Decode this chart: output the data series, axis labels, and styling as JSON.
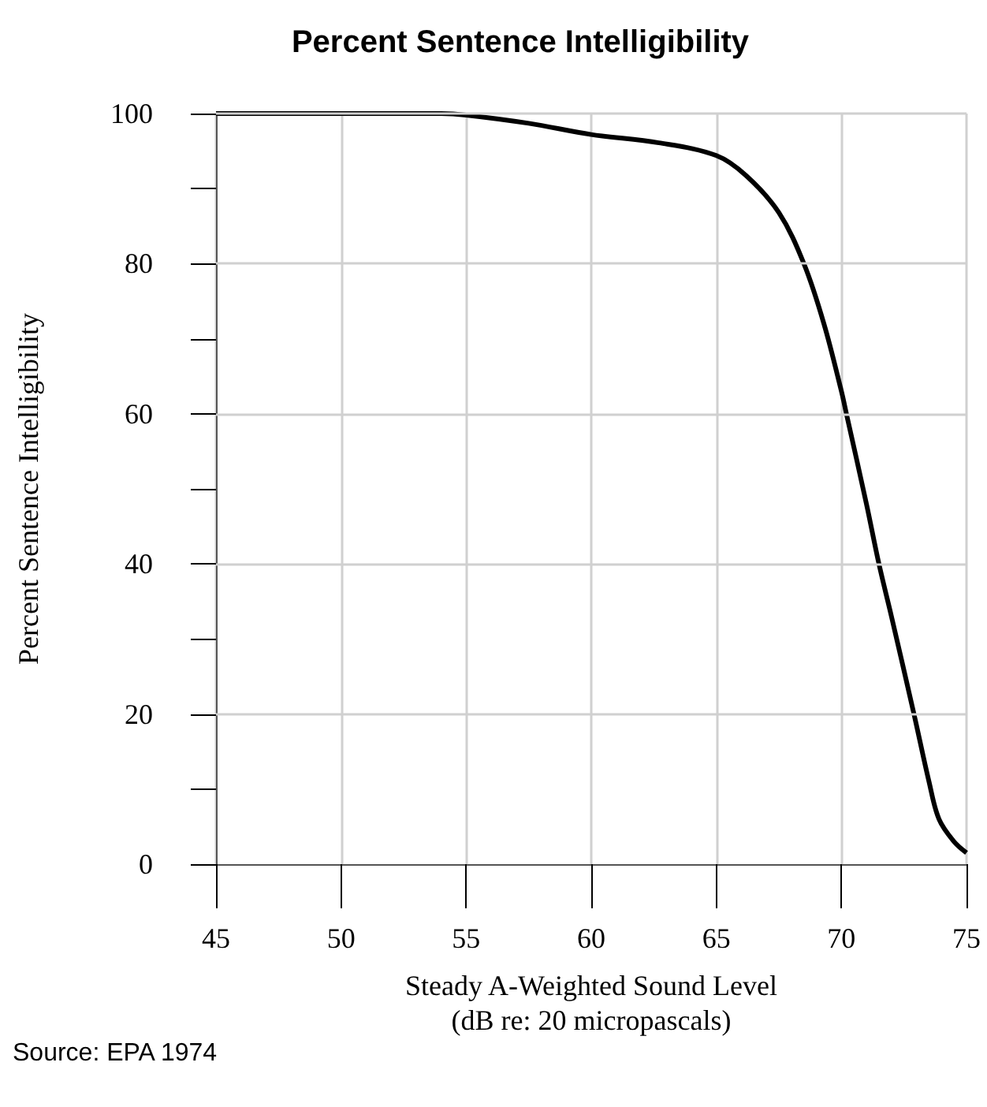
{
  "chart_data": {
    "type": "line",
    "title": "Percent Sentence Intelligibility",
    "xlabel": "Steady A-Weighted Sound Level\n(dB re: 20 micropascals)",
    "ylabel": "Percent Sentence Intelligibility",
    "annotations": [
      "Source: EPA 1974"
    ],
    "x": [
      45,
      50,
      54,
      55,
      57.5,
      60,
      62.7,
      65,
      66.2,
      67.5,
      68.5,
      69.3,
      70,
      70.2,
      71,
      71.5,
      72,
      72.9,
      73.5,
      73.9,
      74.5,
      75
    ],
    "series": [
      {
        "color": "#000000",
        "values": [
          100,
          100,
          100,
          99.8,
          98.7,
          97.2,
          96.1,
          94.4,
          91.7,
          86.8,
          80,
          72,
          63,
          60,
          48,
          40,
          33,
          20,
          11,
          6,
          3,
          1.5
        ]
      }
    ],
    "xlim": [
      45,
      75
    ],
    "xticks": [
      45,
      50,
      55,
      60,
      65,
      70,
      75
    ],
    "ylim": [
      0,
      100
    ],
    "yticks": [
      0,
      {
        "value": 10,
        "label": null
      },
      20,
      {
        "value": 30,
        "label": null
      },
      40,
      {
        "value": 50,
        "label": null
      },
      60,
      {
        "value": 70,
        "label": null
      },
      80,
      {
        "value": 90,
        "label": null
      },
      100
    ],
    "grid": true,
    "marker": "none",
    "line_style": "solid"
  }
}
